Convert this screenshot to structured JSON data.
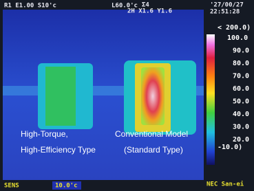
{
  "status_bar": {
    "left": "R1 E1.00 S10'c",
    "level": "L60.0'c",
    "sigma": "Σ4",
    "zoom": "2H X1.6 Y1.6",
    "date": "'27/00/27",
    "time": "22:51:28"
  },
  "scale": {
    "range_top": "< 200.0)",
    "labels": [
      "100.0",
      "90.0",
      "80.0",
      "70.0",
      "60.0",
      "50.0",
      "40.0",
      "30.0",
      "20.0"
    ],
    "range_bottom": "-10.0)"
  },
  "bottom_bar": {
    "sens": "SENS",
    "sens_value": "10.0'c",
    "brand": "NEC San-ei"
  },
  "captions": {
    "left": [
      "High-Torque,",
      "High-Efficiency Type"
    ],
    "right": [
      "Conventional Model",
      "(Standard Type)"
    ]
  }
}
